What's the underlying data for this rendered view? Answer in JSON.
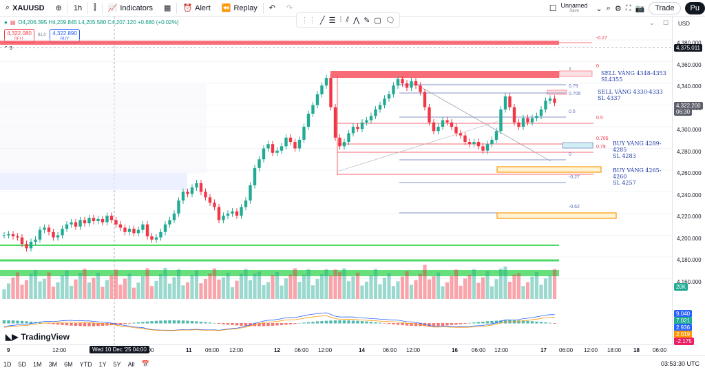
{
  "topbar": {
    "symbol": "XAUUSD",
    "interval": "1h",
    "indicators_label": "Indicators",
    "alert_label": "Alert",
    "replay_label": "Replay",
    "layout_name": "Unnamed",
    "layout_state": "Save",
    "trade_label": "Trade",
    "publish_label": "Pu"
  },
  "legend": {
    "ohlc": "O4,206.395  H4,209.845  L4,205.580  C4,207.120  +0.680 (+0.02%)",
    "sell_price": "4,322.080",
    "sell_label": "SELL",
    "spread": "81.0",
    "buy_price": "4,322.890",
    "buy_label": "BUY",
    "collapse_count": "3"
  },
  "price_axis": {
    "currency": "USD",
    "ticks": [
      "4,380.000",
      "4,360.000",
      "4,340.000",
      "4,320.000",
      "4,300.000",
      "4,280.000",
      "4,260.000",
      "4,240.000",
      "4,220.000",
      "4,200.000",
      "4,180.000",
      "4,160.000"
    ],
    "crosshair_price": "4,375.011",
    "last_price": "4,322.200",
    "last_countdown": "06:30",
    "volume_tag": "20K",
    "macd_tags": [
      {
        "value": "9.040",
        "color": "#2962ff"
      },
      {
        "value": "7.021",
        "color": "#22ab94"
      },
      {
        "value": "2.936",
        "color": "#2962ff"
      },
      {
        "value": "2.019",
        "color": "#ff9800"
      },
      {
        "value": "-2.175",
        "color": "#e91e63"
      }
    ]
  },
  "annotations": {
    "sell1": [
      "SELL VÀNG 4348-4353",
      "SL4355"
    ],
    "sell2": [
      "SELL VÀNG 4330-4333",
      "SL 4337"
    ],
    "buy1": [
      "BUY VÀNG 4289-4285",
      "SL 4283"
    ],
    "buy2": [
      "BUY VÀNG 4265-4260",
      "SL 4257"
    ]
  },
  "fib_levels": {
    "top_set": [
      "-0.27",
      "0",
      "1",
      "0.79",
      "0.705",
      "0.5"
    ],
    "bottom_set": [
      "0.5",
      "0.705",
      "0.79",
      "0",
      "-0.27",
      "-0.62"
    ]
  },
  "time_axis": {
    "labels": [
      "9",
      "12:00",
      "Wed 10 Dec '25  04:00",
      "2:00",
      "11",
      "06:00",
      "12:00",
      "12",
      "06:00",
      "12:00",
      "14",
      "06:00",
      "12:00",
      "16",
      "06:00",
      "12:00",
      "17",
      "06:00",
      "12:00",
      "18:00",
      "18",
      "06:00"
    ]
  },
  "bottombar": {
    "ranges": [
      "1D",
      "5D",
      "1M",
      "3M",
      "6M",
      "YTD",
      "1Y",
      "5Y",
      "All"
    ],
    "clock": "03:53:30 UTC"
  },
  "brand": "TradingView",
  "colors": {
    "up": "#22ab94",
    "down": "#f23645",
    "sell_zone": "#f7525f",
    "buy_zone": "#ff9800",
    "green_band": "#4cd964"
  }
}
